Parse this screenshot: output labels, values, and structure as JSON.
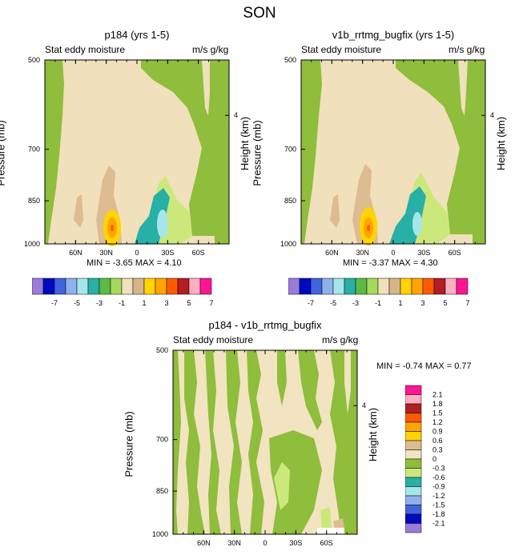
{
  "figure_title": "SON",
  "colors": {
    "model": [
      "#9a7cd8",
      "#0008c2",
      "#4163de",
      "#8fb0ec",
      "#a5e6ea",
      "#27b0a6",
      "#5cb947",
      "#a6d95a",
      "#f0e0bb",
      "#d9b488",
      "#ffd400",
      "#ffa400",
      "#ff5a00",
      "#b11e24",
      "#ffadc1",
      "#ff1493"
    ],
    "diff": [
      "#9a7cd8",
      "#0008c2",
      "#4163de",
      "#8fb0ec",
      "#a5e6ea",
      "#27b0a6",
      "#cbe97a",
      "#8fbd3c",
      "#f2e4c0",
      "#ddbc92",
      "#ffd400",
      "#ffa400",
      "#ff5a00",
      "#b11e24",
      "#ffadc1",
      "#ff1493"
    ]
  },
  "panels": [
    {
      "title": "p184 (yrs 1-5)",
      "left_label": "Stat eddy moisture",
      "right_label": "m/s g/kg",
      "ylabel": "Pressure (mb)",
      "y2label": "Height (km)",
      "stats": "MIN =  -3.65  MAX =   4.10"
    },
    {
      "title": "v1b_rrtmg_bugfix (yrs 1-5)",
      "left_label": "Stat eddy moisture",
      "right_label": "m/s g/kg",
      "ylabel": "Pressure (mb)",
      "y2label": "Height (km)",
      "stats": "MIN =  -3.37  MAX =   4.30"
    },
    {
      "title": "p184 - v1b_rrtmg_bugfix",
      "left_label": "Stat eddy moisture",
      "right_label": "m/s g/kg",
      "ylabel": "Pressure (mb)",
      "y2label": "Height (km)",
      "stats": "MIN =  -0.74  MAX =   0.77"
    }
  ],
  "chart_data": [
    {
      "type": "contour",
      "title": "p184 (yrs 1-5)",
      "variable": "Stat eddy moisture",
      "units": "m/s g/kg",
      "x_axis": {
        "range": [
          -90,
          90
        ],
        "ticks": [
          -60,
          -30,
          0,
          30,
          60
        ],
        "tick_labels": [
          "60N",
          "30N",
          "0",
          "30S",
          "60S"
        ]
      },
      "y_axis": {
        "label": "Pressure (mb)",
        "scale": "log",
        "range": [
          1000,
          500
        ],
        "ticks": [
          1000,
          850,
          700,
          500
        ],
        "tick_labels": [
          "1000",
          "850",
          "700",
          "500"
        ]
      },
      "y2_axis": {
        "label": "Height (km)",
        "ticks": [
          4
        ]
      },
      "contour_levels": [
        -7,
        -6,
        -5,
        -4,
        -3,
        -2,
        -1,
        0,
        1,
        2,
        3,
        4,
        5,
        6,
        7
      ],
      "min": -3.65,
      "max": 4.1
    },
    {
      "type": "contour",
      "title": "v1b_rrtmg_bugfix (yrs 1-5)",
      "variable": "Stat eddy moisture",
      "units": "m/s g/kg",
      "x_axis": {
        "range": [
          -90,
          90
        ],
        "ticks": [
          -60,
          -30,
          0,
          30,
          60
        ],
        "tick_labels": [
          "60N",
          "30N",
          "0",
          "30S",
          "60S"
        ]
      },
      "y_axis": {
        "label": "Pressure (mb)",
        "scale": "log",
        "range": [
          1000,
          500
        ],
        "ticks": [
          1000,
          850,
          700,
          500
        ],
        "tick_labels": [
          "1000",
          "850",
          "700",
          "500"
        ]
      },
      "y2_axis": {
        "label": "Height (km)",
        "ticks": [
          4
        ]
      },
      "contour_levels": [
        -7,
        -6,
        -5,
        -4,
        -3,
        -2,
        -1,
        0,
        1,
        2,
        3,
        4,
        5,
        6,
        7
      ],
      "min": -3.37,
      "max": 4.3
    },
    {
      "type": "contour",
      "title": "p184 - v1b_rrtmg_bugfix",
      "variable": "Stat eddy moisture",
      "units": "m/s g/kg",
      "x_axis": {
        "range": [
          -90,
          90
        ],
        "ticks": [
          -60,
          -30,
          0,
          30,
          60
        ],
        "tick_labels": [
          "60N",
          "30N",
          "0",
          "30S",
          "60S"
        ]
      },
      "y_axis": {
        "label": "Pressure (mb)",
        "scale": "log",
        "range": [
          1000,
          500
        ],
        "ticks": [
          1000,
          850,
          700,
          500
        ],
        "tick_labels": [
          "1000",
          "850",
          "700",
          "500"
        ]
      },
      "y2_axis": {
        "label": "Height (km)",
        "ticks": [
          4
        ]
      },
      "contour_levels": [
        -2.1,
        -1.8,
        -1.5,
        -1.2,
        -0.9,
        -0.6,
        -0.3,
        0,
        0.3,
        0.6,
        0.9,
        1.2,
        1.5,
        1.8,
        2.1
      ],
      "min": -0.74,
      "max": 0.77
    }
  ],
  "colorbars": {
    "top": {
      "orientation": "horizontal",
      "labels": [
        "-7",
        "-5",
        "-3",
        "-1",
        "1",
        "3",
        "5",
        "7"
      ]
    },
    "bottom": {
      "orientation": "vertical",
      "labels": [
        "2.1",
        "1.8",
        "1.5",
        "1.2",
        "0.9",
        "0.6",
        "0.3",
        "0",
        "-0.3",
        "-0.6",
        "-0.9",
        "-1.2",
        "-1.5",
        "-1.8",
        "-2.1"
      ]
    }
  }
}
